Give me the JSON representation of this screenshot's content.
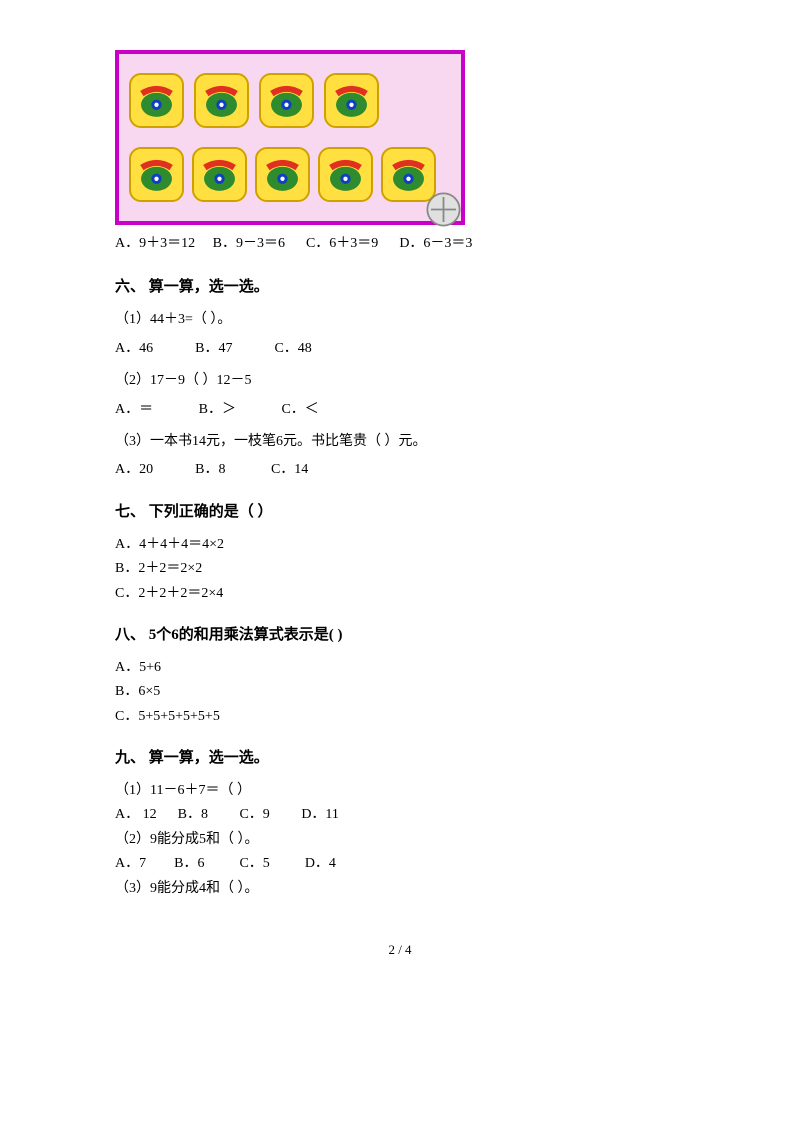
{
  "illustration": {
    "row1_count": 4,
    "row2_count": 5,
    "border_color": "#c800c8",
    "bg_color": "#f8d8f0",
    "tile_color": "#ffe040",
    "phone_body_color": "#2e8b2e",
    "phone_handle_color": "#e03020",
    "phone_dial_color": "#1040c0"
  },
  "q5_options": {
    "a": "A．9＋3＝12",
    "b": "B．9－3＝6",
    "c": "C．6＋3＝9",
    "d": "D．6－3＝3"
  },
  "s6": {
    "heading": "六、 算一算，选一选。",
    "q1": "（1）44＋3=（   ）。",
    "q1_opts": {
      "a": "A．46",
      "b": "B．47",
      "c": "C．48"
    },
    "q2": "（2）17－9（   ）12－5",
    "q2_opts": {
      "a": "A．＝",
      "b": "B．＞",
      "c": "C．＜"
    },
    "q3": "（3）一本书14元，一枝笔6元。书比笔贵（    ）元。",
    "q3_opts": {
      "a": "A．20",
      "b": "B．8",
      "c": "C．14"
    }
  },
  "s7": {
    "heading": "七、 下列正确的是（    ）",
    "a": "A．4＋4＋4＝4×2",
    "b": "B．2＋2＝2×2",
    "c": "C．2＋2＋2＝2×4"
  },
  "s8": {
    "heading": "八、 5个6的和用乘法算式表示是(     )",
    "a": "A．5+6",
    "b": "B．6×5",
    "c": "C．5+5+5+5+5+5"
  },
  "s9": {
    "heading": "九、 算一算，选一选。",
    "q1": "（1）11－6＋7＝（  ）",
    "q1_opts": {
      "a": "A． 12",
      "b": "B．8",
      "c": "C．9",
      "d": "D．11"
    },
    "q2": "（2）9能分成5和（     ）。",
    "q2_opts": {
      "a": "A．7",
      "b": "B．6",
      "c": "C．5",
      "d": "D．4"
    },
    "q3": "（3）9能分成4和（     ）。"
  },
  "footer": "2 / 4"
}
